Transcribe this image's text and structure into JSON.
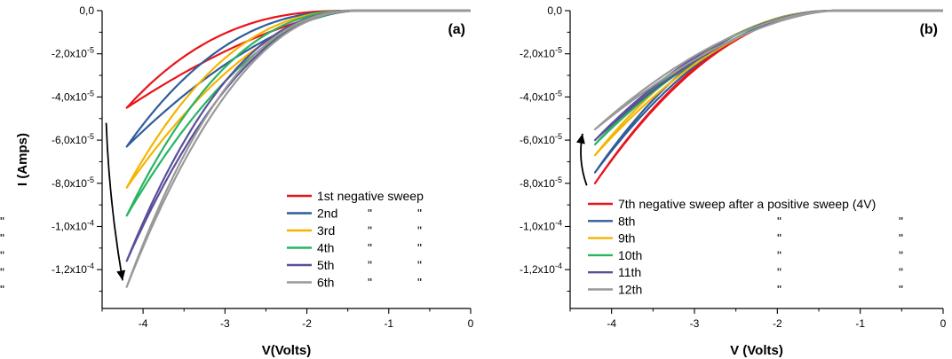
{
  "chart_data": [
    {
      "type": "line",
      "panel_label": "(a)",
      "xlabel": "V(Volts)",
      "ylabel": "I (Amps)",
      "xlim": [
        -4.5,
        0
      ],
      "ylim": [
        -0.000138,
        0.0
      ],
      "x_ticks": [
        -4,
        -3,
        -2,
        -1,
        0
      ],
      "x_tick_labels": [
        "-4",
        "-3",
        "-2",
        "-1",
        "0"
      ],
      "y_ticks": [
        0,
        -2e-05,
        -4e-05,
        -6e-05,
        -8e-05,
        -0.0001,
        -0.00012
      ],
      "y_tick_labels": [
        "0,0",
        "-2,0x10-5",
        "-4,0x10-5",
        "-6,0x10-5",
        "-8,0x10-5",
        "-1,0x10-4",
        "-1,2x10-4"
      ],
      "grid": false,
      "legend_position": "bottom-right",
      "legend_label_rows": [
        [
          "1st negative sweep"
        ],
        [
          "2nd",
          "\"",
          "\""
        ],
        [
          "3rd",
          "\"",
          "\""
        ],
        [
          "4th",
          "\"",
          "\""
        ],
        [
          "5th",
          "\"",
          "\""
        ],
        [
          "6th",
          "\"",
          "\""
        ]
      ],
      "arrow": {
        "direction": "down",
        "from": [
          -4.45,
          -5.2e-05
        ],
        "to": [
          -4.25,
          -0.000125
        ]
      },
      "series": [
        {
          "name": "1st negative sweep",
          "color": "#e8141b",
          "vmin": -4.2,
          "imin": -4.5e-05,
          "up_k": 1.55,
          "down_k": 2.6,
          "v_on": -1.4
        },
        {
          "name": "2nd",
          "color": "#2f5d9a",
          "vmin": -4.2,
          "imin": -6.3e-05,
          "up_k": 1.65,
          "down_k": 2.4,
          "v_on": -1.4
        },
        {
          "name": "3rd",
          "color": "#f5b400",
          "vmin": -4.2,
          "imin": -8.2e-05,
          "up_k": 1.85,
          "down_k": 2.35,
          "v_on": -1.4
        },
        {
          "name": "4th",
          "color": "#28b463",
          "vmin": -4.2,
          "imin": -9.5e-05,
          "up_k": 1.9,
          "down_k": 2.3,
          "v_on": -1.4
        },
        {
          "name": "5th",
          "color": "#5b4f9a",
          "vmin": -4.2,
          "imin": -0.000116,
          "up_k": 2.05,
          "down_k": 2.25,
          "v_on": -1.4
        },
        {
          "name": "6th",
          "color": "#999999",
          "vmin": -4.2,
          "imin": -0.000128,
          "up_k": 2.1,
          "down_k": 2.25,
          "v_on": -1.4
        }
      ]
    },
    {
      "type": "line",
      "panel_label": "(b)",
      "xlabel": "V (Volts)",
      "ylabel": "",
      "xlim": [
        -4.5,
        0
      ],
      "ylim": [
        -0.000138,
        0.0
      ],
      "x_ticks": [
        -4,
        -3,
        -2,
        -1,
        0
      ],
      "x_tick_labels": [
        "-4",
        "-3",
        "-2",
        "-1",
        "0"
      ],
      "y_ticks": [
        0,
        -2e-05,
        -4e-05,
        -6e-05,
        -8e-05,
        -0.0001,
        -0.00012
      ],
      "y_tick_labels": [
        "0,0",
        "-2,0x10-5",
        "-4,0x10-5",
        "-6,0x10-5",
        "-8,0x10-5",
        "-1,0x10-4",
        "-1,2x10-4"
      ],
      "grid": false,
      "legend_position": "bottom",
      "legend_label_rows": [
        [
          "7th negative sweep after a positive sweep (4V)"
        ],
        [
          "8th",
          "\"",
          "\"",
          "\""
        ],
        [
          "9th",
          "\"",
          "\"",
          "\""
        ],
        [
          "10th",
          "\"",
          "\"",
          "\""
        ],
        [
          "11th",
          "\"",
          "\"",
          "\""
        ],
        [
          "12th",
          "\"",
          "\"",
          "\""
        ]
      ],
      "arrow": {
        "direction": "up",
        "from": [
          -4.3,
          -8.1e-05
        ],
        "to": [
          -4.35,
          -5.7e-05
        ]
      },
      "series": [
        {
          "name": "7th negative sweep after a positive sweep (4V)",
          "color": "#e8141b",
          "vmin": -4.2,
          "imin": -8e-05,
          "up_k": 2.0,
          "down_k": 2.05,
          "v_on": -1.3
        },
        {
          "name": "8th",
          "color": "#2f5d9a",
          "vmin": -4.2,
          "imin": -7.5e-05,
          "up_k": 2.0,
          "down_k": 2.15,
          "v_on": -1.3
        },
        {
          "name": "9th",
          "color": "#f5b400",
          "vmin": -4.2,
          "imin": -6.7e-05,
          "up_k": 1.85,
          "down_k": 2.05,
          "v_on": -1.3
        },
        {
          "name": "10th",
          "color": "#28b463",
          "vmin": -4.2,
          "imin": -6.2e-05,
          "up_k": 1.8,
          "down_k": 1.95,
          "v_on": -1.3
        },
        {
          "name": "11th",
          "color": "#5b4f9a",
          "vmin": -4.2,
          "imin": -6e-05,
          "up_k": 1.75,
          "down_k": 1.9,
          "v_on": -1.3
        },
        {
          "name": "12th",
          "color": "#999999",
          "vmin": -4.2,
          "imin": -5.5e-05,
          "up_k": 1.65,
          "down_k": 1.8,
          "v_on": -1.3
        }
      ]
    }
  ]
}
